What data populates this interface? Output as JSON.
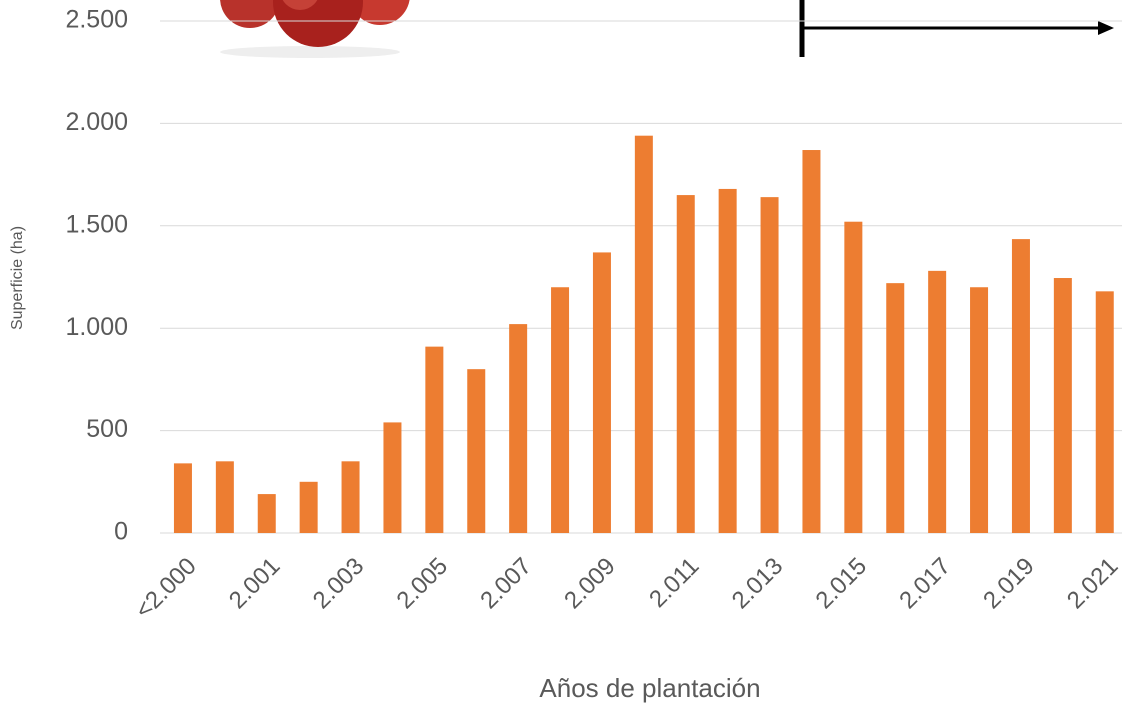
{
  "chart_data": {
    "type": "bar",
    "y_label": "Superficie (ha)",
    "x_label": "Años de plantación",
    "categories": [
      "<2.000",
      null,
      "2.001",
      null,
      "2.003",
      null,
      "2.005",
      null,
      "2.007",
      null,
      "2.009",
      null,
      "2.011",
      null,
      "2.013",
      null,
      "2.015",
      null,
      "2.017",
      null,
      "2.019",
      null,
      "2.021"
    ],
    "values": [
      340,
      350,
      190,
      250,
      350,
      540,
      910,
      800,
      1020,
      1200,
      1370,
      1940,
      1650,
      1680,
      1640,
      1870,
      1520,
      1220,
      1280,
      1200,
      1435,
      1245,
      1180
    ],
    "color": "#ed7d31",
    "ylim": [
      0,
      2500
    ],
    "yticks": [
      0,
      500,
      {
        "value": 1000,
        "label": "1.000"
      },
      {
        "value": 1500,
        "label": "1.500"
      },
      {
        "value": 2000,
        "label": "2.000"
      },
      {
        "value": 2500,
        "label": "2.500"
      }
    ],
    "grid": true
  }
}
